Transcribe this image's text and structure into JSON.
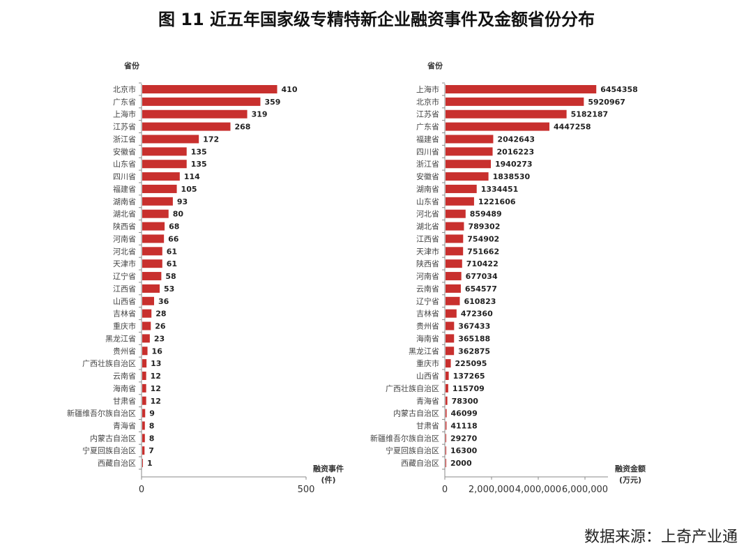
{
  "title": "图 11  近五年国家级专精特新企业融资事件及金额省份分布",
  "source": "数据来源：上奇产业通",
  "colors": {
    "bar": "#c8302e",
    "axis": "#888888"
  },
  "chart_data": [
    {
      "type": "bar",
      "orientation": "horizontal",
      "ylabel": "省份",
      "xlabel": "融资事件",
      "xunit": "(件)",
      "xlim": [
        0,
        500
      ],
      "xticks": [
        "0",
        "500"
      ],
      "grid": false,
      "categories": [
        "北京市",
        "广东省",
        "上海市",
        "江苏省",
        "浙江省",
        "安徽省",
        "山东省",
        "四川省",
        "福建省",
        "湖南省",
        "湖北省",
        "陕西省",
        "河南省",
        "河北省",
        "天津市",
        "辽宁省",
        "江西省",
        "山西省",
        "吉林省",
        "重庆市",
        "黑龙江省",
        "贵州省",
        "广西壮族自治区",
        "云南省",
        "海南省",
        "甘肃省",
        "新疆维吾尔族自治区",
        "青海省",
        "内蒙古自治区",
        "宁夏回族自治区",
        "西藏自治区"
      ],
      "values": [
        410,
        359,
        319,
        268,
        172,
        135,
        135,
        114,
        105,
        93,
        80,
        68,
        66,
        61,
        61,
        58,
        53,
        36,
        28,
        26,
        23,
        16,
        13,
        12,
        12,
        12,
        9,
        8,
        8,
        7,
        1
      ]
    },
    {
      "type": "bar",
      "orientation": "horizontal",
      "ylabel": "省份",
      "xlabel": "融资金额",
      "xunit": "(万元)",
      "xlim": [
        0,
        7000000
      ],
      "xticks": [
        "0",
        "2,000,000",
        "4,000,000",
        "6,000,000"
      ],
      "grid": false,
      "categories": [
        "上海市",
        "北京市",
        "江苏省",
        "广东省",
        "福建省",
        "四川省",
        "浙江省",
        "安徽省",
        "湖南省",
        "山东省",
        "河北省",
        "湖北省",
        "江西省",
        "天津市",
        "陕西省",
        "河南省",
        "云南省",
        "辽宁省",
        "吉林省",
        "贵州省",
        "海南省",
        "黑龙江省",
        "重庆市",
        "山西省",
        "广西壮族自治区",
        "青海省",
        "内蒙古自治区",
        "甘肃省",
        "新疆维吾尔族自治区",
        "宁夏回族自治区",
        "西藏自治区"
      ],
      "values": [
        6454358,
        5920967,
        5182187,
        4447258,
        2042643,
        2016223,
        1940273,
        1838530,
        1334451,
        1221606,
        859489,
        789302,
        754902,
        751662,
        710422,
        677034,
        654577,
        610823,
        472360,
        367433,
        365188,
        362875,
        225095,
        137265,
        115709,
        78300,
        46099,
        41118,
        29270,
        16300,
        2000
      ]
    }
  ]
}
